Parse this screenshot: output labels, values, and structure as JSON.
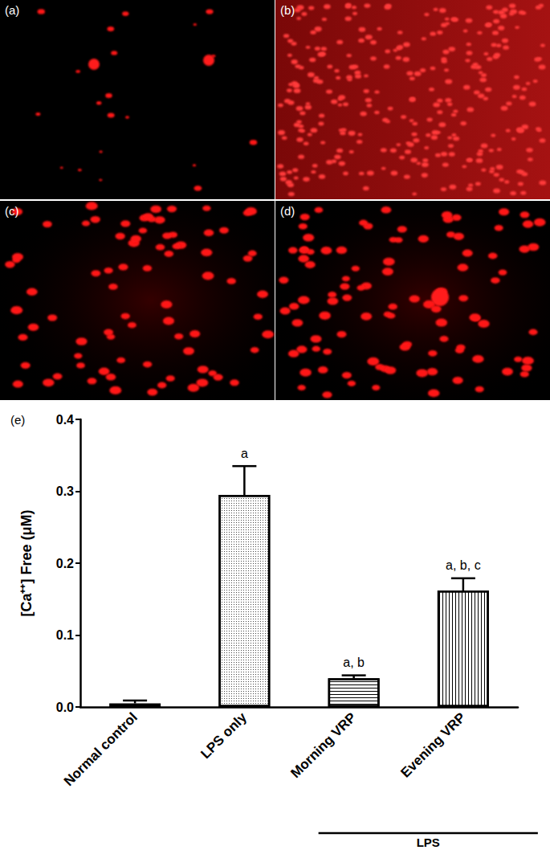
{
  "micrographs": {
    "labels": [
      "(a)",
      "(b)",
      "(c)",
      "(d)"
    ]
  },
  "chart_data": {
    "type": "bar",
    "title": "(e)",
    "y_label": "[Ca⁺⁺] Free (μM)",
    "categories": [
      "Normal control",
      "LPS only",
      "Morning VRP",
      "Evening VRP"
    ],
    "values": [
      0.005,
      0.295,
      0.04,
      0.162
    ],
    "errors": [
      0.004,
      0.04,
      0.004,
      0.017
    ],
    "significance_labels": [
      null,
      "a",
      "a, b",
      "a, b, c"
    ],
    "group": {
      "label": "LPS",
      "categories": [
        "Morning VRP",
        "Evening VRP"
      ]
    },
    "color": "#ffffff",
    "ylim": [
      0,
      0.4
    ],
    "yticks": [
      {
        "value": 0,
        "label": "0.0"
      },
      0.1,
      0.2,
      0.3,
      0.4
    ],
    "grid": false
  }
}
